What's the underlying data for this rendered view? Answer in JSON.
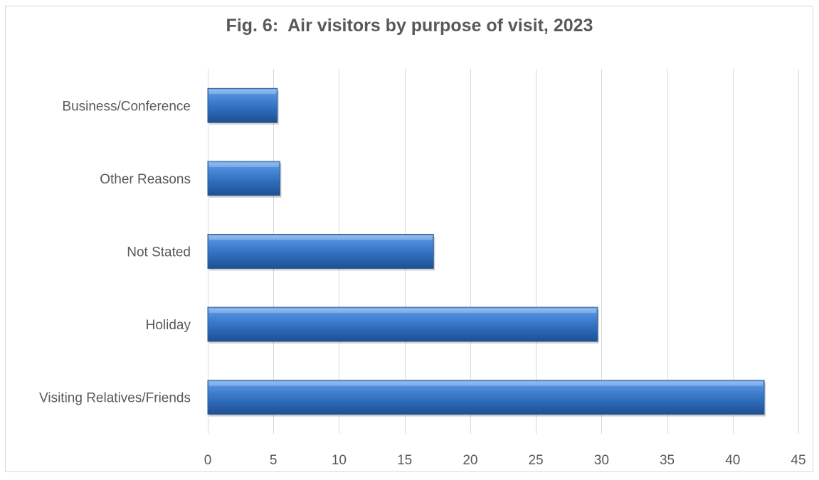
{
  "chart_data": {
    "type": "bar",
    "orientation": "horizontal",
    "title": "Fig. 6:  Air visitors by purpose of visit, 2023",
    "xlabel": "",
    "ylabel": "",
    "categories": [
      "Business/Conference",
      "Other Reasons",
      "Not Stated",
      "Holiday",
      "Visiting Relatives/Friends"
    ],
    "values": [
      5.3,
      5.5,
      17.2,
      29.7,
      42.4
    ],
    "xlim": [
      0,
      45
    ],
    "xticks": [
      "0",
      "5",
      "10",
      "15",
      "20",
      "25",
      "30",
      "35",
      "40",
      "45"
    ],
    "grid": "vertical",
    "legend": "none",
    "bar_color": "#3a78c9"
  }
}
